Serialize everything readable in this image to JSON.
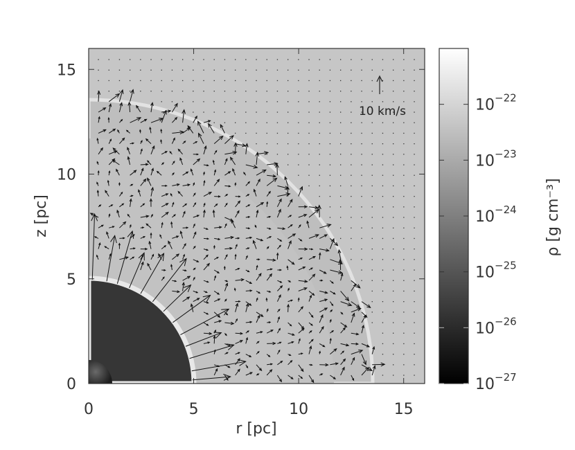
{
  "chart_data": {
    "type": "heatmap",
    "title": "",
    "xlabel": "r [pc]",
    "ylabel": "z [pc]",
    "xlim": [
      0,
      16
    ],
    "ylim": [
      0,
      16
    ],
    "x_ticks": [
      "0",
      "5",
      "10",
      "15"
    ],
    "x_tick_values": [
      0,
      5,
      10,
      15
    ],
    "y_ticks": [
      "0",
      "5",
      "10",
      "15"
    ],
    "y_tick_values": [
      0,
      5,
      10,
      15
    ],
    "colorbar": {
      "label": "ρ  [g cm⁻³]",
      "scale": "log",
      "colormap": "grayscale",
      "range": [
        1e-27,
        1e-21
      ],
      "tick_exponents": [
        "−27",
        "−26",
        "−25",
        "−24",
        "−23",
        "−22"
      ],
      "tick_base": "10",
      "tick_values": [
        -27,
        -26,
        -25,
        -24,
        -23,
        -22
      ]
    },
    "reference_vector": {
      "label": "10 km/s",
      "speed": 10
    },
    "regions": [
      {
        "name": "inner bubble",
        "outer_radius_pc": 5.0,
        "tone": "#333333"
      },
      {
        "name": "outer shell",
        "outer_radius_pc": 13.6,
        "tone": "#bdbdbd"
      },
      {
        "name": "ambient medium",
        "tone": "#c6c6c6"
      }
    ],
    "colors": {
      "ambient": "#c6c6c6",
      "bubble": "#353535",
      "shell_edge": "#e6e6e6",
      "axis": "#333333"
    }
  }
}
